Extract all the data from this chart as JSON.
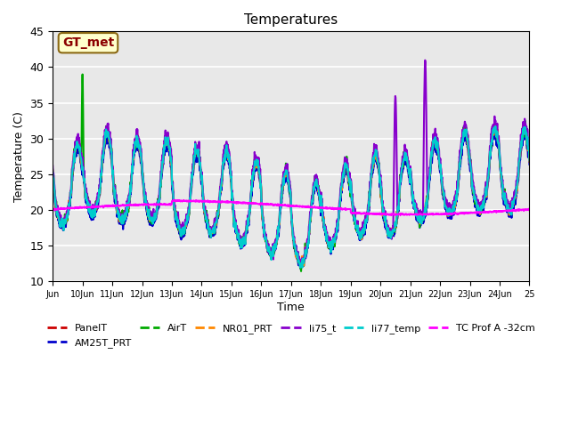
{
  "title": "Temperatures",
  "xlabel": "Time",
  "ylabel": "Temperature (C)",
  "ylim": [
    10,
    45
  ],
  "background_color": "#e8e8e8",
  "grid_color": "white",
  "annotation_text": "GT_met",
  "annotation_bg": "#ffffcc",
  "annotation_border": "#8B6914",
  "annotation_text_color": "#8B0000",
  "x_tick_labels": [
    "Jun",
    "10Jun",
    "11Jun",
    "12Jun",
    "13Jun",
    "14Jun",
    "15Jun",
    "16Jun",
    "17Jun",
    "18Jun",
    "19Jun",
    "20Jun",
    "21Jun",
    "22Jun",
    "23Jun",
    "24Jun",
    "25"
  ],
  "yticks": [
    10,
    15,
    20,
    25,
    30,
    35,
    40,
    45
  ],
  "series_names": [
    "PanelT",
    "AM25T_PRT",
    "AirT",
    "NR01_PRT",
    "li75_t",
    "li77_temp",
    "TC Prof A -32cm"
  ],
  "series_colors": [
    "#cc0000",
    "#0000cc",
    "#00aa00",
    "#ff8800",
    "#8800cc",
    "#00cccc",
    "#ff00ff"
  ],
  "series_lw": [
    1.5,
    1.5,
    1.5,
    1.5,
    1.5,
    1.5,
    1.5
  ]
}
